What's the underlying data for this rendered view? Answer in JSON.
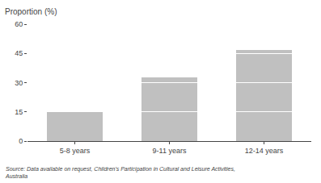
{
  "chart_data": {
    "type": "bar",
    "stacked": true,
    "ylabel": "Proportion (%)",
    "annotations": [
      "Source: Data available on request, Children's Participation in Cultural and Leisure Activities,",
      "Australia"
    ],
    "categories": [
      "5-8 years",
      "9-11 years",
      "12-14 years"
    ],
    "color": "#c0c0c0",
    "series": [
      {
        "values": [
          15,
          15,
          15
        ]
      },
      {
        "values": [
          null,
          15,
          15
        ]
      },
      {
        "values": [
          null,
          3,
          15
        ]
      },
      {
        "values": [
          null,
          null,
          2
        ]
      }
    ],
    "ylim": [
      0,
      60
    ],
    "yticks": [
      0,
      15,
      30,
      45,
      60
    ],
    "grid": false
  }
}
